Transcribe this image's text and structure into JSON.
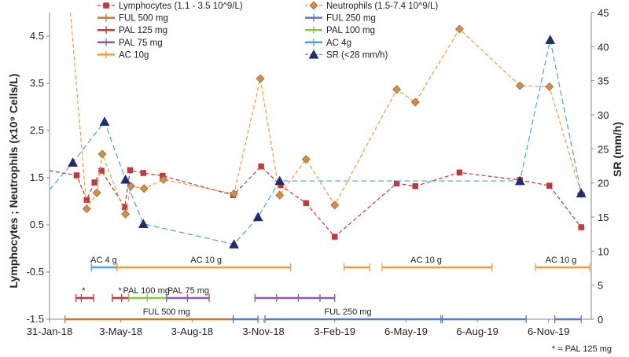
{
  "chart_data": {
    "type": "line",
    "left_axis": {
      "label": "Lymphocytes ;  Neutrophils  (x10⁹ Cells/L)",
      "min": -1.5,
      "max": 5,
      "ticks": [
        -1.5,
        -0.5,
        0.5,
        1.5,
        2.5,
        3.5,
        4.5
      ],
      "tick_labels": [
        "-1.5",
        "-0.5",
        "0.5",
        "1.5",
        "2.5",
        "3.5",
        "4.5"
      ]
    },
    "right_axis": {
      "label": "SR (mm/h)",
      "min": 0,
      "max": 45,
      "ticks": [
        0,
        5,
        10,
        15,
        20,
        25,
        30,
        35,
        40,
        45
      ],
      "tick_labels": [
        "0",
        "5",
        "10",
        "15",
        "20",
        "25",
        "30",
        "35",
        "40",
        "45"
      ]
    },
    "x_axis": {
      "start": "2018-01-31",
      "end": "2019-12-31",
      "ticks": [
        "2018-01-31",
        "2018-05-03",
        "2018-08-03",
        "2018-11-03",
        "2019-02-03",
        "2019-05-06",
        "2019-08-06",
        "2019-11-06"
      ],
      "tick_labels": [
        "31-Jan-18",
        "3-May-18",
        "3-Aug-18",
        "3-Nov-18",
        "3-Feb-19",
        "6-May-19",
        "6-Aug-19",
        "6-Nov-19"
      ]
    },
    "series": [
      {
        "name": "Lymphocytes (1.1 - 3.5 10^9/L)",
        "axis": "left",
        "color": "#c0393b",
        "marker": "square",
        "dash": "5,3",
        "points": [
          [
            "2018-01-31",
            1.65
          ],
          [
            "2018-03-07",
            1.55
          ],
          [
            "2018-03-20",
            1.03
          ],
          [
            "2018-03-30",
            1.4
          ],
          [
            "2018-04-08",
            1.65
          ],
          [
            "2018-05-08",
            0.88
          ],
          [
            "2018-05-15",
            1.66
          ],
          [
            "2018-06-01",
            1.6
          ],
          [
            "2018-06-26",
            1.54
          ],
          [
            "2018-09-25",
            1.13
          ],
          [
            "2018-10-31",
            1.74
          ],
          [
            "2018-11-25",
            1.34
          ],
          [
            "2018-12-28",
            0.96
          ],
          [
            "2019-02-03",
            0.25
          ],
          [
            "2019-04-24",
            1.38
          ],
          [
            "2019-05-18",
            1.32
          ],
          [
            "2019-07-14",
            1.61
          ],
          [
            "2019-09-30",
            1.45
          ],
          [
            "2019-11-07",
            1.33
          ],
          [
            "2019-12-18",
            0.45
          ]
        ]
      },
      {
        "name": "Neutrophils  (1.5-7.4 10^9/L)",
        "axis": "left",
        "color": "#f39c3a",
        "marker": "diamond",
        "dash": "5,3",
        "marker_fill": "#d98a4a",
        "points": [
          [
            "2018-02-27",
            5.0
          ],
          [
            "2018-03-20",
            0.84
          ],
          [
            "2018-04-02",
            1.18
          ],
          [
            "2018-04-09",
            2.0
          ],
          [
            "2018-05-09",
            0.73
          ],
          [
            "2018-05-16",
            1.32
          ],
          [
            "2018-06-02",
            1.27
          ],
          [
            "2018-06-27",
            1.46
          ],
          [
            "2018-09-26",
            1.16
          ],
          [
            "2018-10-30",
            3.6
          ],
          [
            "2018-11-24",
            1.13
          ],
          [
            "2018-12-28",
            1.89
          ],
          [
            "2019-02-03",
            0.92
          ],
          [
            "2019-04-24",
            3.37
          ],
          [
            "2019-05-18",
            3.1
          ],
          [
            "2019-07-14",
            4.65
          ],
          [
            "2019-09-30",
            3.45
          ],
          [
            "2019-11-07",
            3.43
          ],
          [
            "2019-12-18",
            1.16
          ]
        ]
      },
      {
        "name": "SR (<28 mm/h)",
        "axis": "right",
        "color": "#4ba3d9",
        "marker": "triangle",
        "dash": "7,4",
        "marker_fill": "#1f2e6e",
        "points": [
          [
            "2018-01-31",
            19.0
          ],
          [
            "2018-03-02",
            23.0
          ],
          [
            "2018-04-12",
            29.0
          ],
          [
            "2018-05-09",
            20.5
          ],
          [
            "2018-06-01",
            14.0
          ],
          [
            "2018-09-26",
            11.0
          ],
          [
            "2018-10-27",
            15.0
          ],
          [
            "2018-11-24",
            20.3
          ],
          [
            "2019-09-30",
            20.3
          ],
          [
            "2019-11-08",
            41.0
          ],
          [
            "2019-12-18",
            18.5
          ]
        ]
      }
    ],
    "treatments": [
      {
        "name": "FUL 500 mg",
        "color": "#c07a2a",
        "level": -1.5,
        "label": "FUL 500 mg",
        "label_at": "2018-07-01",
        "segments": [
          [
            "2018-02-20",
            "2018-09-25"
          ]
        ],
        "marks": [
          "2018-02-20",
          "2018-09-25"
        ]
      },
      {
        "name": "FUL 250 mg",
        "color": "#5a78c8",
        "level": -1.5,
        "label": "FUL 250 mg",
        "label_at": "2019-02-20",
        "segments": [
          [
            "2018-09-25",
            "2018-10-27"
          ],
          [
            "2018-11-05",
            "2019-06-20"
          ],
          [
            "2019-06-20",
            "2019-10-08"
          ],
          [
            "2019-11-14",
            "2019-12-18"
          ]
        ],
        "marks": [
          "2018-09-25",
          "2018-10-27",
          "2018-11-05",
          "2019-06-20",
          "2019-06-22",
          "2019-10-08",
          "2019-11-14",
          "2019-12-18"
        ]
      },
      {
        "name": "PAL 125 mg",
        "color": "#c0393b",
        "level": -1.05,
        "label": "*",
        "label_at": "2018-03-16",
        "segments": [
          [
            "2018-03-06",
            "2018-03-29"
          ],
          [
            "2018-04-22",
            "2018-05-13"
          ]
        ],
        "marks": [
          "2018-03-06",
          "2018-03-13",
          "2018-03-29",
          "2018-04-22",
          "2018-05-04",
          "2018-05-13"
        ]
      },
      {
        "name": "PAL 100 mg",
        "color": "#8dc63f",
        "level": -1.05,
        "label": "PAL 100 mg",
        "label_at": "2018-06-05",
        "segments": [
          [
            "2018-05-13",
            "2018-07-01"
          ]
        ],
        "marks": [
          "2018-05-13",
          "2018-06-06",
          "2018-07-01"
        ]
      },
      {
        "name": "PAL 75 mg",
        "color": "#8e5ba6",
        "level": -1.05,
        "label": "PAL 75 mg",
        "label_at": "2018-07-29",
        "segments": [
          [
            "2018-07-01",
            "2018-08-25"
          ],
          [
            "2018-10-23",
            "2019-02-03"
          ]
        ],
        "marks": [
          "2018-07-01",
          "2018-07-28",
          "2018-08-25",
          "2018-10-23",
          "2018-11-20",
          "2018-12-18",
          "2019-01-15",
          "2019-02-03"
        ]
      },
      {
        "name": "AC 4g",
        "color": "#4ba3d9",
        "level": -0.4,
        "label": "AC 4 g",
        "label_at": "2018-04-11",
        "segments": [
          [
            "2018-03-26",
            "2018-04-28"
          ]
        ],
        "marks": [
          "2018-03-26",
          "2018-04-28"
        ]
      },
      {
        "name": "AC 10g",
        "color": "#f39c3a",
        "level": -0.4,
        "label": "AC 10 g",
        "label_at": "2018-08-21",
        "segments": [
          [
            "2018-04-28",
            "2018-12-08"
          ],
          [
            "2019-02-15",
            "2019-03-20"
          ],
          [
            "2019-04-05",
            "2019-08-25"
          ],
          [
            "2019-10-20",
            "2019-12-29"
          ]
        ],
        "marks": [
          "2018-04-28",
          "2018-12-08",
          "2019-02-15",
          "2019-03-20",
          "2019-04-05",
          "2019-08-25",
          "2019-10-20",
          "2019-12-29"
        ],
        "extra_labels": [
          [
            "2019-06-01",
            "AC 10 g"
          ],
          [
            "2019-11-22",
            "AC 10 g"
          ]
        ]
      }
    ],
    "second_star": {
      "label": "*",
      "at": "2018-05-02"
    },
    "legend": [
      {
        "label": "Lymphocytes (1.1 - 3.5 10^9/L)",
        "series": "Lymphocytes (1.1 - 3.5 10^9/L)"
      },
      {
        "label": "Neutrophils  (1.5-7.4 10^9/L)",
        "series": "Neutrophils  (1.5-7.4 10^9/L)"
      },
      {
        "label": "FUL 500 mg",
        "series": "FUL 500 mg"
      },
      {
        "label": "FUL 250 mg",
        "series": "FUL 250 mg"
      },
      {
        "label": "PAL 125 mg",
        "series": "PAL 125 mg"
      },
      {
        "label": "PAL 100 mg",
        "series": "PAL 100 mg"
      },
      {
        "label": "PAL 75 mg",
        "series": "PAL 75 mg"
      },
      {
        "label": "AC 4g",
        "series": "AC 4g"
      },
      {
        "label": "AC 10g",
        "series": "AC 10g"
      },
      {
        "label": "SR (<28 mm/h)",
        "series": "SR (<28 mm/h)"
      }
    ],
    "footnote": "* = PAL 125 mg"
  }
}
